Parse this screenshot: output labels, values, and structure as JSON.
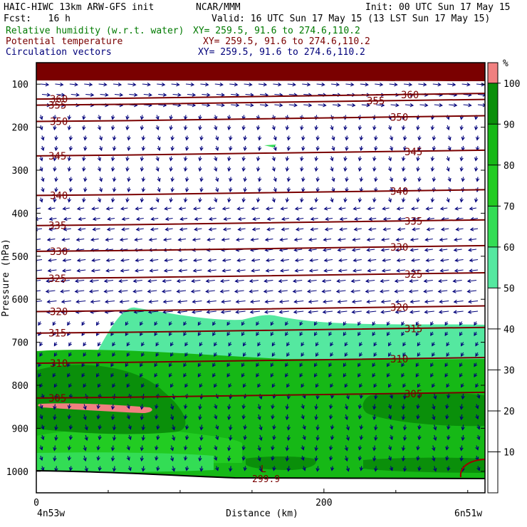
{
  "header": {
    "model_title": "HAIC-HIWC 13km ARW-GFS init",
    "org": "NCAR/MMM",
    "init": "Init: 00 UTC Sun 17 May 15",
    "fcst": "Fcst:   16 h",
    "valid": "Valid: 16 UTC Sun 17 May 15 (13 LST Sun 17 May 15)",
    "fields": [
      {
        "label": "Relative humidity (w.r.t. water)",
        "xy": "XY= 259.5, 91.6 to 274.6,110.2",
        "color": "#007a00"
      },
      {
        "label": "Potential temperature",
        "xy": "XY= 259.5, 91.6 to 274.6,110.2",
        "color": "#7a0000"
      },
      {
        "label": "Circulation vectors",
        "xy": "XY= 259.5, 91.6 to 274.6,110.2",
        "color": "#00007a"
      }
    ]
  },
  "chart_data": {
    "type": "cross-section",
    "ylabel": "Pressure (hPa)",
    "xlabel": "Distance (km)",
    "y_ticks": [
      100,
      200,
      300,
      400,
      500,
      600,
      700,
      800,
      900,
      1000
    ],
    "x_ticks": [
      0,
      200
    ],
    "x_end_labels": {
      "left": "4n53w",
      "right": "6n51w"
    },
    "ylim": [
      1050,
      50
    ],
    "xlim": [
      0,
      312
    ],
    "colorbar": {
      "unit": "%",
      "ticks": [
        10,
        20,
        30,
        40,
        50,
        60,
        70,
        80,
        90,
        100
      ],
      "bands": [
        {
          "from": 50,
          "to": 60,
          "color": "#55e8a0"
        },
        {
          "from": 60,
          "to": 70,
          "color": "#33dd55"
        },
        {
          "from": 70,
          "to": 80,
          "color": "#22cc22"
        },
        {
          "from": 80,
          "to": 90,
          "color": "#16b816"
        },
        {
          "from": 90,
          "to": 100,
          "color": "#0a8f0a"
        },
        {
          "from": 100,
          "to": 105,
          "color": "#f08080"
        }
      ]
    },
    "theta_isentropes": [
      {
        "value": 305,
        "label": "305",
        "p": 823
      },
      {
        "value": 310,
        "label": "310",
        "p": 742
      },
      {
        "value": 315,
        "label": "315",
        "p": 672
      },
      {
        "value": 320,
        "label": "320",
        "p": 622
      },
      {
        "value": 325,
        "label": "325",
        "p": 545
      },
      {
        "value": 330,
        "label": "330",
        "p": 482
      },
      {
        "value": 335,
        "label": "335",
        "p": 422
      },
      {
        "value": 340,
        "label": "340",
        "p": 352
      },
      {
        "value": 345,
        "label": "345",
        "p": 260
      },
      {
        "value": 350,
        "label": "350",
        "p": 180
      },
      {
        "value": 355,
        "label": "355",
        "p": 142
      },
      {
        "value": 360,
        "label": "360",
        "p": 128
      }
    ],
    "low_marker": {
      "label": "L",
      "value": "299.9"
    }
  }
}
